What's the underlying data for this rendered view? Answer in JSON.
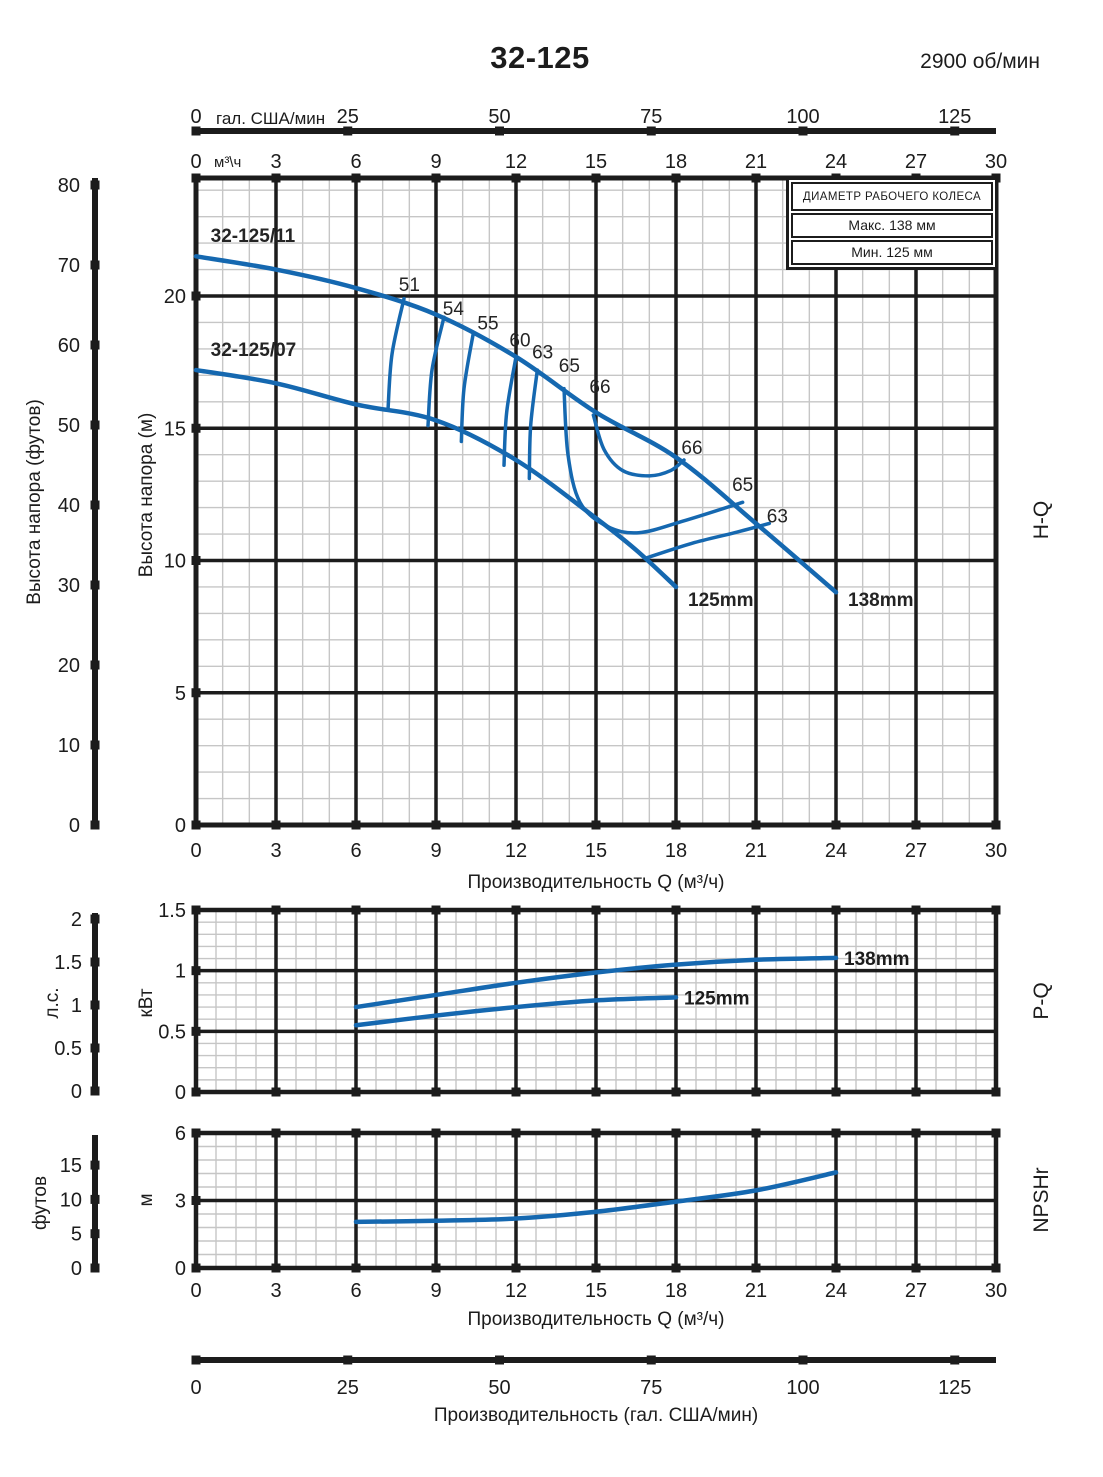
{
  "header": {
    "title": "32-125",
    "rpm": "2900 об/мин"
  },
  "legend": {
    "title": "ДИАМЕТР РАБОЧЕГО КОЛЕСА",
    "max_label": "Макс. 138 мм",
    "min_label": "Мин. 125 мм"
  },
  "colors": {
    "curve": "#1568b0",
    "grid_major": "#1c1c1c",
    "grid_minor": "#c6c6c6",
    "text": "#1c1c1c"
  },
  "gal_axis_top": {
    "unit": "гал. США/мин",
    "ticks": [
      0,
      25,
      50,
      75,
      100,
      125
    ]
  },
  "m3h_axis_top": {
    "unit": "м³\\ч",
    "ticks": [
      0,
      3,
      6,
      9,
      12,
      15,
      18,
      21,
      24,
      27,
      30
    ]
  },
  "gal_axis_bottom": {
    "label": "Производительность (гал. США/мин)",
    "ticks": [
      0,
      25,
      50,
      75,
      100,
      125
    ]
  },
  "chart_data": [
    {
      "id": "hq",
      "type": "line",
      "right_label": "H-Q",
      "xlabel": "Производительность Q (м³/ч)",
      "x_ticks": [
        0,
        3,
        6,
        9,
        12,
        15,
        18,
        21,
        24,
        27,
        30
      ],
      "x_range": [
        0,
        30
      ],
      "y_axis_m": {
        "label": "Высота напора (м)",
        "ticks": [
          0,
          5,
          10,
          15,
          20
        ],
        "range": [
          0,
          24.4
        ]
      },
      "y_axis_ft": {
        "label": "Высота напора (футов)",
        "ticks": [
          0,
          10,
          20,
          30,
          40,
          50,
          60,
          70,
          80
        ]
      },
      "series": [
        {
          "name": "138mm",
          "curve_label": "32-125/11",
          "end_label": "138mm",
          "points": [
            [
              0,
              21.5
            ],
            [
              3,
              21.0
            ],
            [
              6,
              20.3
            ],
            [
              9,
              19.3
            ],
            [
              12,
              17.7
            ],
            [
              15,
              15.6
            ],
            [
              18,
              13.9
            ],
            [
              21,
              11.4
            ],
            [
              24,
              8.8
            ]
          ]
        },
        {
          "name": "125mm",
          "curve_label": "32-125/07",
          "end_label": "125mm",
          "points": [
            [
              0,
              17.2
            ],
            [
              3,
              16.7
            ],
            [
              6,
              15.9
            ],
            [
              9,
              15.3
            ],
            [
              12,
              13.8
            ],
            [
              15,
              11.6
            ],
            [
              16.5,
              10.4
            ],
            [
              18,
              9.0
            ]
          ]
        }
      ],
      "efficiency_contours": [
        {
          "value": "51",
          "points": [
            [
              7.8,
              19.9
            ],
            [
              7.35,
              17.8
            ],
            [
              7.2,
              15.7
            ]
          ]
        },
        {
          "value": "54",
          "points": [
            [
              9.3,
              19.2
            ],
            [
              8.85,
              17.2
            ],
            [
              8.7,
              15.1
            ]
          ]
        },
        {
          "value": "55",
          "points": [
            [
              10.4,
              18.6
            ],
            [
              10.05,
              16.5
            ],
            [
              9.95,
              14.5
            ]
          ]
        },
        {
          "value": "60",
          "points": [
            [
              12.0,
              17.7
            ],
            [
              11.65,
              15.6
            ],
            [
              11.55,
              13.6
            ]
          ]
        },
        {
          "value": "63",
          "points": [
            [
              12.8,
              17.2
            ],
            [
              12.55,
              15.1
            ],
            [
              12.5,
              13.1
            ]
          ]
        },
        {
          "value": "65",
          "points": [
            [
              13.8,
              16.5
            ],
            [
              13.95,
              14.0
            ],
            [
              14.4,
              12.2
            ],
            [
              15.4,
              11.3
            ],
            [
              16.6,
              11.05
            ],
            [
              18.3,
              11.5
            ],
            [
              20.5,
              12.2
            ]
          ]
        },
        {
          "value": "66",
          "points": [
            [
              14.9,
              15.5
            ],
            [
              15.3,
              14.2
            ],
            [
              16.0,
              13.4
            ],
            [
              17.0,
              13.2
            ],
            [
              17.8,
              13.4
            ],
            [
              18.3,
              13.8
            ]
          ]
        },
        {
          "value": "63",
          "points": [
            [
              16.9,
              10.1
            ],
            [
              18.6,
              10.65
            ],
            [
              20.2,
              11.05
            ],
            [
              21.5,
              11.4
            ]
          ]
        }
      ],
      "point_labels": [
        {
          "text": "32-125/11",
          "q": 0.55,
          "h": 22.3,
          "bold": true,
          "anchor": "start"
        },
        {
          "text": "32-125/07",
          "q": 0.55,
          "h": 18.0,
          "bold": true,
          "anchor": "start"
        },
        {
          "text": "51",
          "q": 8.0,
          "h": 20.45
        },
        {
          "text": "54",
          "q": 9.65,
          "h": 19.55
        },
        {
          "text": "55",
          "q": 10.95,
          "h": 19.0
        },
        {
          "text": "60",
          "q": 12.15,
          "h": 18.35
        },
        {
          "text": "63",
          "q": 13.0,
          "h": 17.9
        },
        {
          "text": "65",
          "q": 14.0,
          "h": 17.4
        },
        {
          "text": "66",
          "q": 15.15,
          "h": 16.6
        },
        {
          "text": "66",
          "q": 18.6,
          "h": 14.3
        },
        {
          "text": "65",
          "q": 20.5,
          "h": 12.9
        },
        {
          "text": "63",
          "q": 21.8,
          "h": 11.7
        },
        {
          "text": "125mm",
          "q": 18.45,
          "h": 8.55,
          "bold": true,
          "anchor": "start"
        },
        {
          "text": "138mm",
          "q": 24.45,
          "h": 8.55,
          "bold": true,
          "anchor": "start"
        }
      ]
    },
    {
      "id": "pq",
      "type": "line",
      "right_label": "P-Q",
      "y_axis_kw": {
        "label": "кВт",
        "ticks": [
          0,
          0.5,
          1,
          1.5
        ],
        "range": [
          0,
          1.5
        ]
      },
      "y_axis_hp": {
        "label": "л.с.",
        "ticks": [
          0,
          0.5,
          1,
          1.5,
          2
        ]
      },
      "series": [
        {
          "name": "138mm",
          "end_label": "138mm",
          "points": [
            [
              6,
              0.7
            ],
            [
              9,
              0.8
            ],
            [
              12,
              0.9
            ],
            [
              15,
              0.985
            ],
            [
              18,
              1.05
            ],
            [
              21,
              1.09
            ],
            [
              24,
              1.105
            ]
          ]
        },
        {
          "name": "125mm",
          "end_label": "125mm",
          "points": [
            [
              6,
              0.55
            ],
            [
              9,
              0.63
            ],
            [
              12,
              0.7
            ],
            [
              15,
              0.755
            ],
            [
              18,
              0.78
            ]
          ]
        }
      ]
    },
    {
      "id": "npshr",
      "type": "line",
      "right_label": "NPSHr",
      "xlabel": "Производительность Q (м³/ч)",
      "x_ticks": [
        0,
        3,
        6,
        9,
        12,
        15,
        18,
        21,
        24,
        27,
        30
      ],
      "y_axis_m": {
        "label": "м",
        "ticks": [
          0,
          3,
          6
        ],
        "range": [
          0,
          6
        ]
      },
      "y_axis_ft": {
        "label": "футов",
        "ticks": [
          0,
          5,
          10,
          15
        ]
      },
      "series": [
        {
          "name": "NPSHr",
          "points": [
            [
              6,
              2.05
            ],
            [
              9,
              2.1
            ],
            [
              12,
              2.2
            ],
            [
              15,
              2.5
            ],
            [
              18,
              2.95
            ],
            [
              21,
              3.45
            ],
            [
              24,
              4.25
            ]
          ]
        }
      ]
    }
  ]
}
